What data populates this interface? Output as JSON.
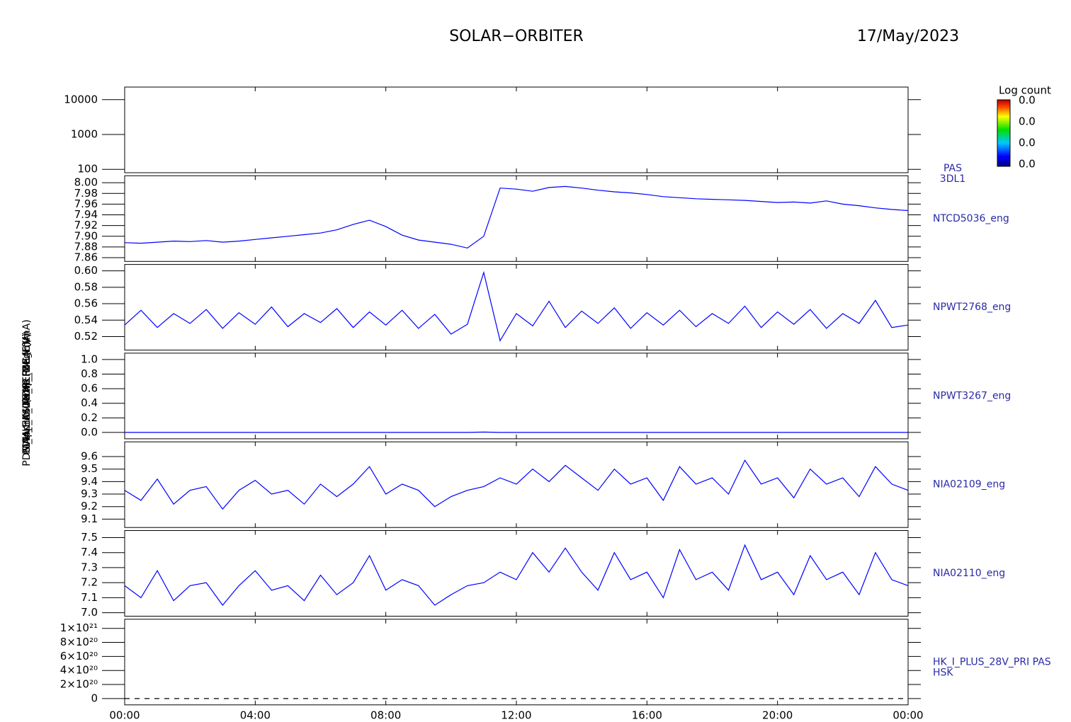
{
  "title": "SOLAR−ORBITER",
  "date": "17/May/2023",
  "colorbar": {
    "label": "Log count",
    "ticks": [
      "0.0",
      "0.0",
      "0.0",
      "0.0"
    ]
  },
  "chart_data": [
    {
      "type": "spectrogram",
      "ylabel": "(eV)",
      "side_label": [
        "PAS",
        "3DL1"
      ],
      "log": true,
      "ylim": [
        80,
        23000
      ],
      "yticks": [
        100,
        1000,
        10000
      ],
      "xlim": [
        0,
        24
      ],
      "xticks": [
        {
          "value": 0,
          "label": "00:00"
        },
        {
          "value": 4,
          "label": "04:00"
        },
        {
          "value": 8,
          "label": "08:00"
        },
        {
          "value": 12,
          "label": "12:00"
        },
        {
          "value": 16,
          "label": "16:00"
        },
        {
          "value": 20,
          "label": "20:00"
        },
        {
          "value": 24,
          "label": "00:00"
        }
      ]
    },
    {
      "type": "line",
      "ylabel": "Approx Temp (DegC)",
      "side_label": [
        "NTCD5036_eng"
      ],
      "ylim": [
        7.853,
        8.013
      ],
      "yticks": [
        7.86,
        7.88,
        {
          "value": 7.9,
          "label": "7.90"
        },
        7.92,
        7.94,
        7.96,
        7.98,
        {
          "value": 8,
          "label": "8.00"
        }
      ],
      "xlim": [
        0,
        24
      ],
      "xticks": [
        {
          "value": 0,
          "label": "00:00"
        },
        {
          "value": 4,
          "label": "04:00"
        },
        {
          "value": 8,
          "label": "08:00"
        },
        {
          "value": 12,
          "label": "12:00"
        },
        {
          "value": 16,
          "label": "16:00"
        },
        {
          "value": 20,
          "label": "20:00"
        },
        {
          "value": 24,
          "label": "00:00"
        }
      ],
      "x": [
        0,
        0.5,
        1,
        1.5,
        2,
        2.5,
        3,
        3.5,
        4,
        4.5,
        5,
        5.5,
        6,
        6.5,
        7,
        7.5,
        8,
        8.5,
        9,
        9.5,
        10,
        10.5,
        11,
        11.5,
        12,
        12.5,
        13,
        13.5,
        14,
        14.5,
        15,
        15.5,
        16,
        16.5,
        17,
        17.5,
        18,
        18.5,
        19,
        19.5,
        20,
        20.5,
        21,
        21.5,
        22,
        22.5,
        23,
        23.5,
        24
      ],
      "series": [
        {
          "color": "#0000ff",
          "values": [
            7.888,
            7.887,
            7.889,
            7.891,
            7.89,
            7.892,
            7.889,
            7.891,
            7.894,
            7.897,
            7.9,
            7.903,
            7.906,
            7.912,
            7.922,
            7.93,
            7.918,
            7.902,
            7.893,
            7.889,
            7.885,
            7.878,
            7.9,
            7.99,
            7.988,
            7.984,
            7.991,
            7.993,
            7.99,
            7.986,
            7.983,
            7.981,
            7.978,
            7.974,
            7.972,
            7.97,
            7.969,
            7.968,
            7.967,
            7.965,
            7.963,
            7.964,
            7.962,
            7.966,
            7.96,
            7.957,
            7.953,
            7.95,
            7.948
          ]
        }
      ]
    },
    {
      "type": "line",
      "ylabel": "SWA-EAS1 THR_MCA (V)",
      "side_label": [
        "NPWT2768_eng"
      ],
      "ylim": [
        0.5035,
        0.6078
      ],
      "yticks": [
        0.52,
        0.54,
        0.56,
        0.58,
        {
          "value": 0.6,
          "label": "0.60"
        }
      ],
      "xlim": [
        0,
        24
      ],
      "xticks": [
        {
          "value": 0,
          "label": "00:00"
        },
        {
          "value": 4,
          "label": "04:00"
        },
        {
          "value": 8,
          "label": "08:00"
        },
        {
          "value": 12,
          "label": "12:00"
        },
        {
          "value": 16,
          "label": "16:00"
        },
        {
          "value": 20,
          "label": "20:00"
        },
        {
          "value": 24,
          "label": "00:00"
        }
      ],
      "x": [
        0,
        0.5,
        1,
        1.5,
        2,
        2.5,
        3,
        3.5,
        4,
        4.5,
        5,
        5.5,
        6,
        6.5,
        7,
        7.5,
        8,
        8.5,
        9,
        9.5,
        10,
        10.5,
        11,
        11.5,
        12,
        12.5,
        13,
        13.5,
        14,
        14.5,
        15,
        15.5,
        16,
        16.5,
        17,
        17.5,
        18,
        18.5,
        19,
        19.5,
        20,
        20.5,
        21,
        21.5,
        22,
        22.5,
        23,
        23.5,
        24
      ],
      "series": [
        {
          "color": "#0000ff",
          "values": [
            0.534,
            0.552,
            0.531,
            0.548,
            0.536,
            0.553,
            0.53,
            0.549,
            0.535,
            0.556,
            0.532,
            0.548,
            0.537,
            0.554,
            0.531,
            0.55,
            0.534,
            0.552,
            0.53,
            0.547,
            0.523,
            0.535,
            0.598,
            0.515,
            0.548,
            0.533,
            0.563,
            0.531,
            0.551,
            0.536,
            0.555,
            0.53,
            0.549,
            0.534,
            0.552,
            0.532,
            0.548,
            0.536,
            0.557,
            0.531,
            0.55,
            0.535,
            0.553,
            0.53,
            0.548,
            0.536,
            0.564,
            0.531,
            0.534
          ]
        }
      ]
    },
    {
      "type": "line",
      "ylabel": "SWA-EAS2 THR_MCA (V)",
      "side_label": [
        "NPWT3267_eng"
      ],
      "ylim": [
        -0.087,
        1.087
      ],
      "yticks": [
        {
          "value": 0,
          "label": "0.0"
        },
        0.2,
        0.4,
        0.6,
        0.8,
        {
          "value": 1,
          "label": "1.0"
        }
      ],
      "xlim": [
        0,
        24
      ],
      "xticks": [
        {
          "value": 0,
          "label": "00:00"
        },
        {
          "value": 4,
          "label": "04:00"
        },
        {
          "value": 8,
          "label": "08:00"
        },
        {
          "value": 12,
          "label": "12:00"
        },
        {
          "value": 16,
          "label": "16:00"
        },
        {
          "value": 20,
          "label": "20:00"
        },
        {
          "value": 24,
          "label": "00:00"
        }
      ],
      "x": [
        0,
        0.5,
        1,
        1.5,
        2,
        2.5,
        3,
        3.5,
        4,
        4.5,
        5,
        5.5,
        6,
        6.5,
        7,
        7.5,
        8,
        8.5,
        9,
        9.5,
        10,
        10.5,
        11,
        11.5,
        12,
        12.5,
        13,
        13.5,
        14,
        14.5,
        15,
        15.5,
        16,
        16.5,
        17,
        17.5,
        18,
        18.5,
        19,
        19.5,
        20,
        20.5,
        21,
        21.5,
        22,
        22.5,
        23,
        23.5,
        24
      ],
      "series": [
        {
          "color": "#0000ff",
          "values": [
            0,
            0,
            0,
            0,
            0,
            0,
            0,
            0,
            0,
            0,
            0,
            0,
            0,
            0,
            0,
            0,
            0,
            0,
            0,
            0,
            0,
            0,
            0.005,
            0,
            0,
            0,
            0,
            0,
            0,
            0,
            0,
            0,
            0,
            0,
            0,
            0,
            0,
            0,
            0,
            0,
            0,
            0,
            0,
            0,
            0,
            0,
            0,
            0,
            0
          ]
        }
      ]
    },
    {
      "type": "line",
      "ylabel": "PDM_HK_IMON_FEE (mA)",
      "side_label": [
        "NIA02109_eng"
      ],
      "ylim": [
        9.033,
        9.718
      ],
      "yticks": [
        9.1,
        9.2,
        9.3,
        9.4,
        9.5,
        9.6
      ],
      "xlim": [
        0,
        24
      ],
      "xticks": [
        {
          "value": 0,
          "label": "00:00"
        },
        {
          "value": 4,
          "label": "04:00"
        },
        {
          "value": 8,
          "label": "08:00"
        },
        {
          "value": 12,
          "label": "12:00"
        },
        {
          "value": 16,
          "label": "16:00"
        },
        {
          "value": 20,
          "label": "20:00"
        },
        {
          "value": 24,
          "label": "00:00"
        }
      ],
      "x": [
        0,
        0.5,
        1,
        1.5,
        2,
        2.5,
        3,
        3.5,
        4,
        4.5,
        5,
        5.5,
        6,
        6.5,
        7,
        7.5,
        8,
        8.5,
        9,
        9.5,
        10,
        10.5,
        11,
        11.5,
        12,
        12.5,
        13,
        13.5,
        14,
        14.5,
        15,
        15.5,
        16,
        16.5,
        17,
        17.5,
        18,
        18.5,
        19,
        19.5,
        20,
        20.5,
        21,
        21.5,
        22,
        22.5,
        23,
        23.5,
        24
      ],
      "series": [
        {
          "color": "#0000ff",
          "values": [
            9.33,
            9.25,
            9.42,
            9.22,
            9.33,
            9.36,
            9.18,
            9.33,
            9.41,
            9.3,
            9.33,
            9.22,
            9.38,
            9.28,
            9.38,
            9.52,
            9.3,
            9.38,
            9.33,
            9.2,
            9.28,
            9.33,
            9.36,
            9.43,
            9.38,
            9.5,
            9.4,
            9.53,
            9.43,
            9.33,
            9.5,
            9.38,
            9.43,
            9.25,
            9.52,
            9.38,
            9.43,
            9.3,
            9.57,
            9.38,
            9.43,
            9.27,
            9.5,
            9.38,
            9.43,
            9.28,
            9.52,
            9.38,
            9.33
          ]
        }
      ]
    },
    {
      "type": "line",
      "ylabel": "PDM_HK_IMON_PERMLIF (mA)",
      "side_label": [
        "NIA02110_eng"
      ],
      "ylim": [
        6.977,
        7.547
      ],
      "yticks": [
        {
          "value": 7,
          "label": "7.0"
        },
        7.1,
        7.2,
        7.3,
        7.4,
        7.5
      ],
      "xlim": [
        0,
        24
      ],
      "xticks": [
        {
          "value": 0,
          "label": "00:00"
        },
        {
          "value": 4,
          "label": "04:00"
        },
        {
          "value": 8,
          "label": "08:00"
        },
        {
          "value": 12,
          "label": "12:00"
        },
        {
          "value": 16,
          "label": "16:00"
        },
        {
          "value": 20,
          "label": "20:00"
        },
        {
          "value": 24,
          "label": "00:00"
        }
      ],
      "x": [
        0,
        0.5,
        1,
        1.5,
        2,
        2.5,
        3,
        3.5,
        4,
        4.5,
        5,
        5.5,
        6,
        6.5,
        7,
        7.5,
        8,
        8.5,
        9,
        9.5,
        10,
        10.5,
        11,
        11.5,
        12,
        12.5,
        13,
        13.5,
        14,
        14.5,
        15,
        15.5,
        16,
        16.5,
        17,
        17.5,
        18,
        18.5,
        19,
        19.5,
        20,
        20.5,
        21,
        21.5,
        22,
        22.5,
        23,
        23.5,
        24
      ],
      "series": [
        {
          "color": "#0000ff",
          "values": [
            7.18,
            7.1,
            7.28,
            7.08,
            7.18,
            7.2,
            7.05,
            7.18,
            7.28,
            7.15,
            7.18,
            7.08,
            7.25,
            7.12,
            7.2,
            7.38,
            7.15,
            7.22,
            7.18,
            7.05,
            7.12,
            7.18,
            7.2,
            7.27,
            7.22,
            7.4,
            7.27,
            7.43,
            7.27,
            7.15,
            7.4,
            7.22,
            7.27,
            7.1,
            7.42,
            7.22,
            7.27,
            7.15,
            7.45,
            7.22,
            7.27,
            7.12,
            7.38,
            7.22,
            7.27,
            7.12,
            7.4,
            7.22,
            7.18
          ]
        }
      ]
    },
    {
      "type": "line",
      "ylabel": "(nA)",
      "side_label": [
        "HK_I_PLUS_28V_PRI PAS",
        "HSK"
      ],
      "ylim": [
        -9e+19,
        1.13e+21
      ],
      "yticks": [
        0,
        {
          "value": 2e+20,
          "label": "2×10²⁰"
        },
        {
          "value": 4e+20,
          "label": "4×10²⁰"
        },
        {
          "value": 6e+20,
          "label": "6×10²⁰"
        },
        {
          "value": 8e+20,
          "label": "8×10²⁰"
        },
        {
          "value": 1e+21,
          "label": "1×10²¹"
        }
      ],
      "xlim": [
        0,
        24
      ],
      "xticks": [
        {
          "value": 0,
          "label": "00:00"
        },
        {
          "value": 4,
          "label": "04:00"
        },
        {
          "value": 8,
          "label": "08:00"
        },
        {
          "value": 12,
          "label": "12:00"
        },
        {
          "value": 16,
          "label": "16:00"
        },
        {
          "value": 20,
          "label": "20:00"
        },
        {
          "value": 24,
          "label": "00:00"
        }
      ],
      "x": [
        0,
        24
      ],
      "series": [
        {
          "color": "#000000",
          "dashed": true,
          "values": [
            0,
            0
          ]
        }
      ]
    }
  ]
}
